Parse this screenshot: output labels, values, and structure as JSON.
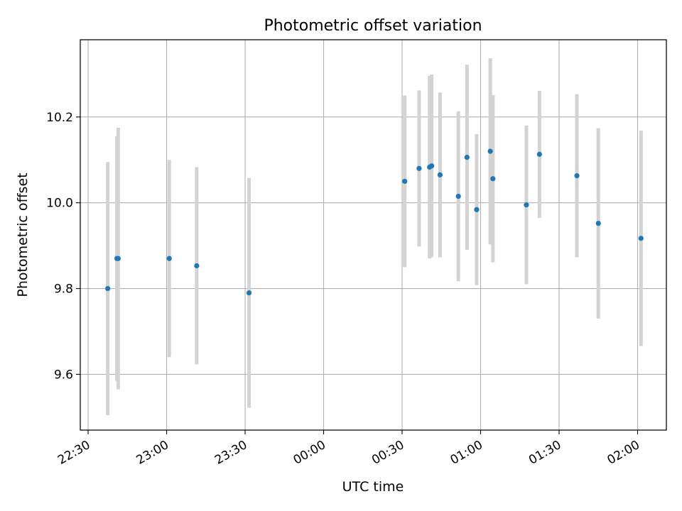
{
  "chart_data": {
    "type": "scatter",
    "title": "Photometric offset variation",
    "xlabel": "UTC time",
    "ylabel": "Photometric offset",
    "x_unit": "UTC clock time (HH:MM), spanning midnight",
    "xlim": [
      "22:27",
      "02:11"
    ],
    "ylim": [
      9.47,
      10.38
    ],
    "x_ticks": [
      "22:30",
      "23:00",
      "23:30",
      "00:00",
      "00:30",
      "01:00",
      "01:30",
      "02:00"
    ],
    "y_ticks": [
      "9.6",
      "9.8",
      "10.0",
      "10.2"
    ],
    "y_tick_values": [
      9.6,
      9.8,
      10.0,
      10.2
    ],
    "grid": true,
    "colors": {
      "point": "#1f77b4",
      "errorbar": "#d3d3d3",
      "grid": "#b0b0b0"
    },
    "points": [
      {
        "t": "22:37.5",
        "y": 9.8,
        "err": 0.295
      },
      {
        "t": "22:41",
        "y": 9.87,
        "err": 0.285
      },
      {
        "t": "22:41.5",
        "y": 9.87,
        "err": 0.305
      },
      {
        "t": "23:01",
        "y": 9.87,
        "err": 0.23
      },
      {
        "t": "23:11.5",
        "y": 9.853,
        "err": 0.23
      },
      {
        "t": "23:31.5",
        "y": 9.79,
        "err": 0.268
      },
      {
        "t": "00:31",
        "y": 10.05,
        "err": 0.2
      },
      {
        "t": "00:36.5",
        "y": 10.08,
        "err": 0.182
      },
      {
        "t": "00:40.5",
        "y": 10.083,
        "err": 0.213
      },
      {
        "t": "00:41.3",
        "y": 10.086,
        "err": 0.213
      },
      {
        "t": "00:44.5",
        "y": 10.065,
        "err": 0.192
      },
      {
        "t": "00:51.5",
        "y": 10.015,
        "err": 0.198
      },
      {
        "t": "00:54.8",
        "y": 10.106,
        "err": 0.216
      },
      {
        "t": "00:58.5",
        "y": 9.984,
        "err": 0.176
      },
      {
        "t": "01:03.7",
        "y": 10.12,
        "err": 0.217
      },
      {
        "t": "01:04.7",
        "y": 10.056,
        "err": 0.195
      },
      {
        "t": "01:17.5",
        "y": 9.995,
        "err": 0.185
      },
      {
        "t": "01:22.5",
        "y": 10.113,
        "err": 0.148
      },
      {
        "t": "01:36.8",
        "y": 10.063,
        "err": 0.19
      },
      {
        "t": "01:45",
        "y": 9.952,
        "err": 0.222
      },
      {
        "t": "02:01.3",
        "y": 9.917,
        "err": 0.251
      }
    ]
  }
}
